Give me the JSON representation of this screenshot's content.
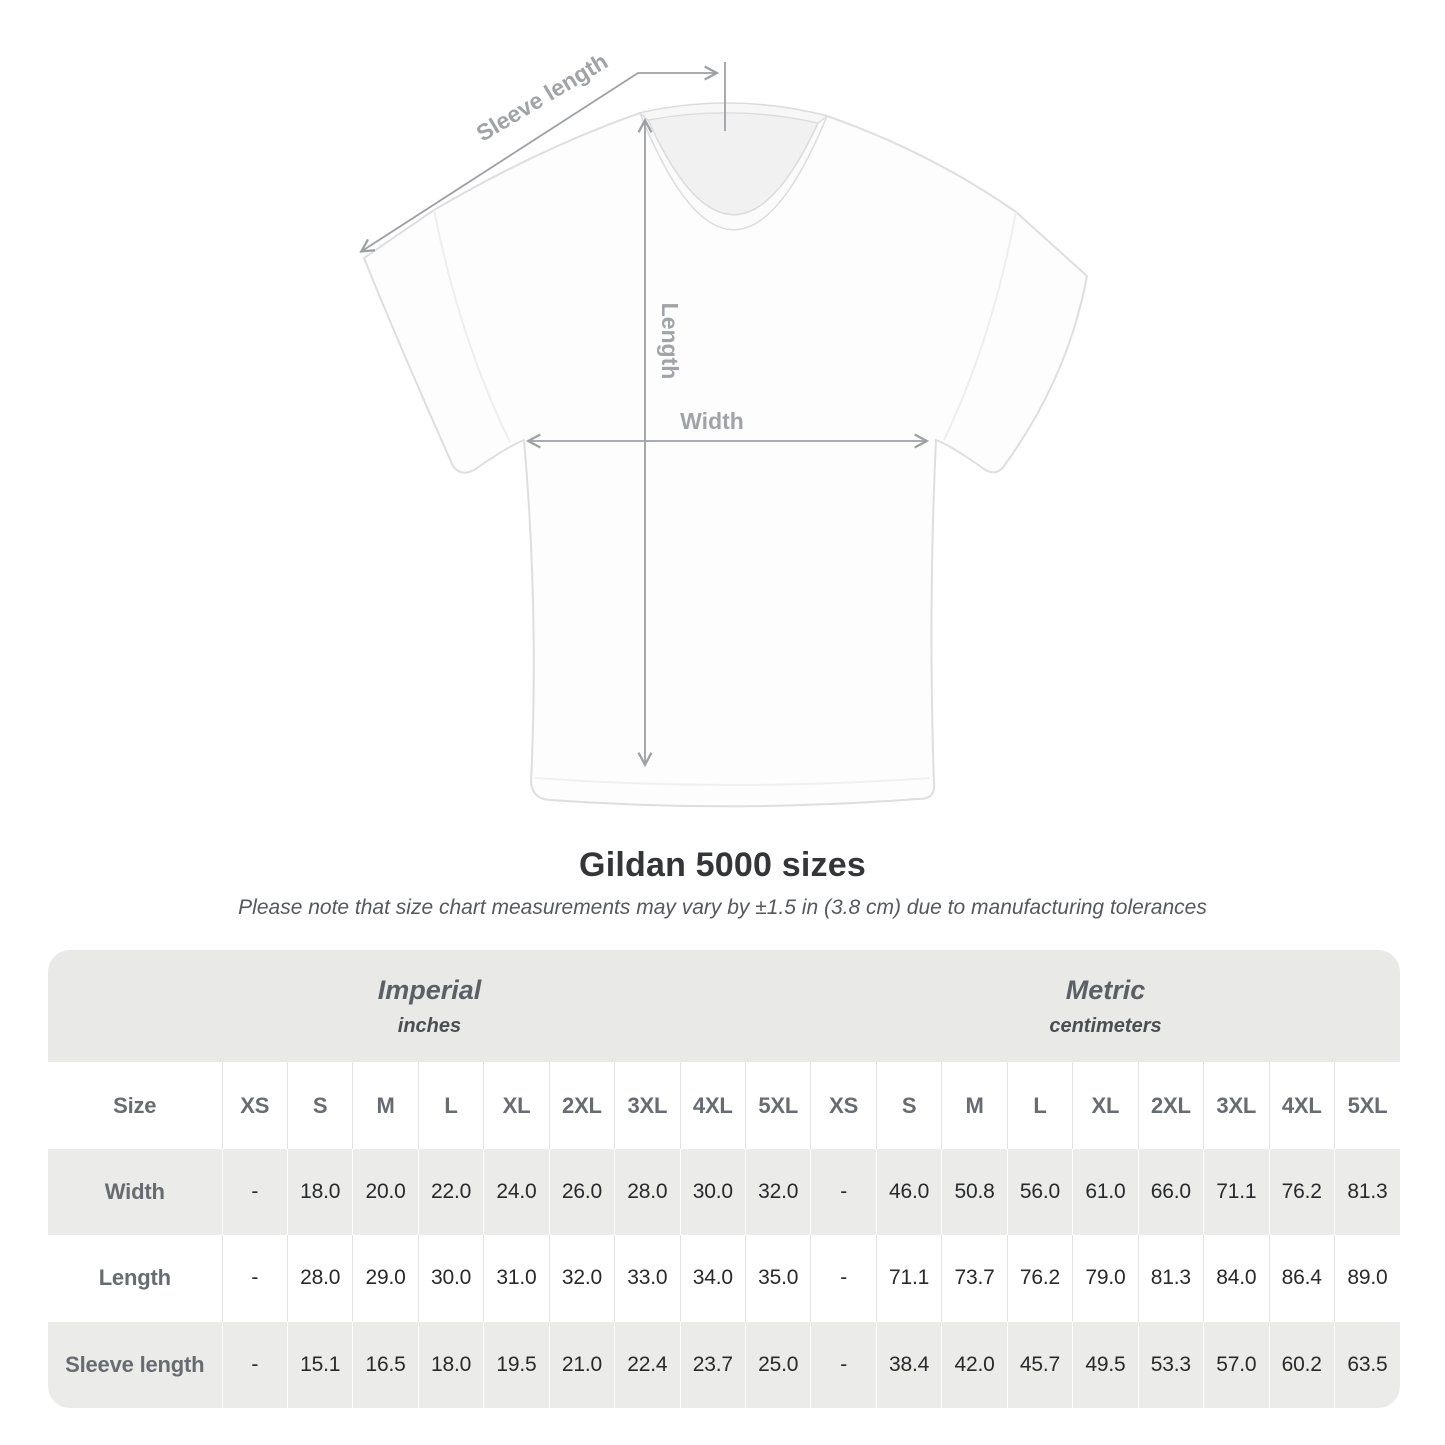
{
  "title": "Gildan 5000 sizes",
  "subtitle": "Please note that size chart measurements may vary by ±1.5 in (3.8 cm) due to manufacturing tolerances",
  "diagram": {
    "sleeve_length_label": "Sleeve length",
    "length_label": "Length",
    "width_label": "Width"
  },
  "colors": {
    "annotation_gray": "#a0a3a7",
    "band_gray": "#e9e9e8",
    "row_gray": "#ebebea",
    "value_text": "#28292b",
    "label_text": "#686c71",
    "shirt_outline": "#dedede"
  },
  "table": {
    "size_header": "Size",
    "groups": [
      {
        "label": "Imperial",
        "sublabel": "inches"
      },
      {
        "label": "Metric",
        "sublabel": "centimeters"
      }
    ],
    "sizes": [
      "XS",
      "S",
      "M",
      "L",
      "XL",
      "2XL",
      "3XL",
      "4XL",
      "5XL"
    ],
    "rows": [
      {
        "label": "Width",
        "imperial": [
          "-",
          "18.0",
          "20.0",
          "22.0",
          "24.0",
          "26.0",
          "28.0",
          "30.0",
          "32.0"
        ],
        "metric": [
          "-",
          "46.0",
          "50.8",
          "56.0",
          "61.0",
          "66.0",
          "71.1",
          "76.2",
          "81.3"
        ]
      },
      {
        "label": "Length",
        "imperial": [
          "-",
          "28.0",
          "29.0",
          "30.0",
          "31.0",
          "32.0",
          "33.0",
          "34.0",
          "35.0"
        ],
        "metric": [
          "-",
          "71.1",
          "73.7",
          "76.2",
          "79.0",
          "81.3",
          "84.0",
          "86.4",
          "89.0"
        ]
      },
      {
        "label": "Sleeve length",
        "imperial": [
          "-",
          "15.1",
          "16.5",
          "18.0",
          "19.5",
          "21.0",
          "22.4",
          "23.7",
          "25.0"
        ],
        "metric": [
          "-",
          "38.4",
          "42.0",
          "45.7",
          "49.5",
          "53.3",
          "57.0",
          "60.2",
          "63.5"
        ]
      }
    ]
  }
}
